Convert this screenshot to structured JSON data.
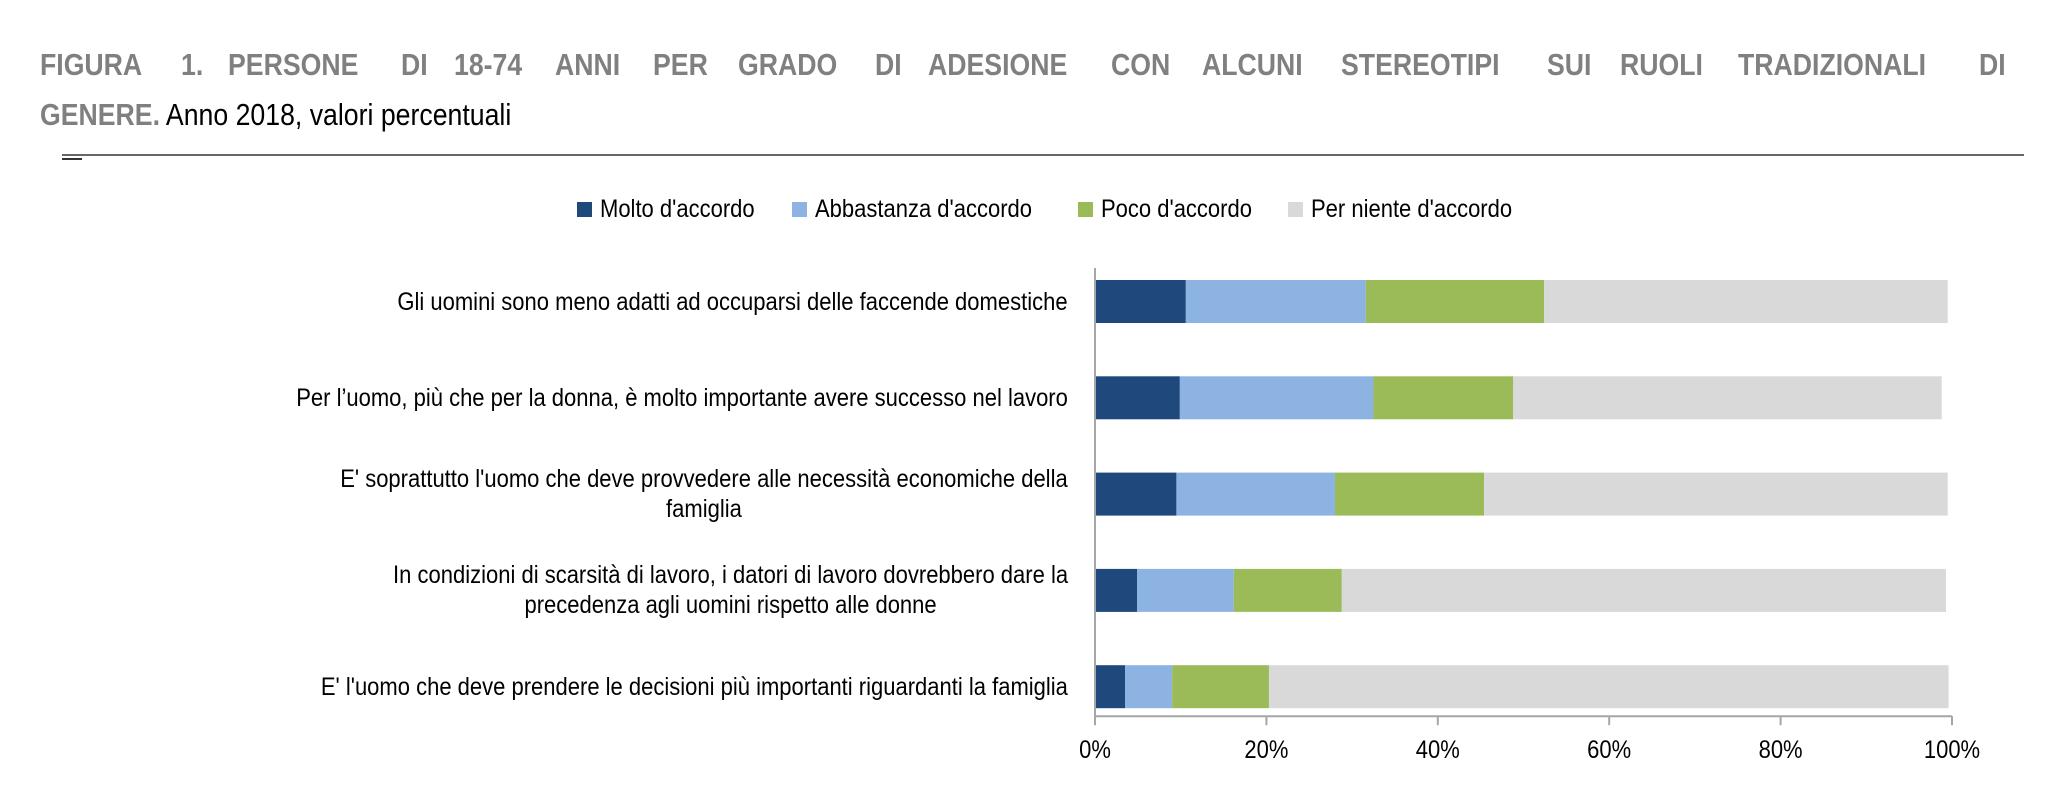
{
  "title": {
    "bold_line1_words": [
      "FIGURA",
      "1.",
      "PERSONE",
      "DI",
      "18-74",
      "ANNI",
      "PER",
      "GRADO",
      "DI",
      "ADESIONE",
      "CON",
      "ALCUNI",
      "STEREOTIPI",
      "SUI",
      "RUOLI",
      "TRADIZIONALI",
      "DI"
    ],
    "bold_line2": "GENERE.",
    "normal_line2": " Anno 2018, valori percentuali"
  },
  "chart_data": {
    "type": "bar",
    "orientation": "horizontal",
    "stacked": true,
    "title": "FIGURA 1. PERSONE DI 18-74 ANNI PER GRADO DI ADESIONE CON ALCUNI STEREOTIPI SUI RUOLI TRADIZIONALI DI GENERE. Anno 2018, valori percentuali",
    "categories": [
      "Gli uomini sono meno adatti ad occuparsi delle faccende domestiche",
      "Per l’uomo, più che per la donna, è molto importante avere successo nel lavoro",
      "E' soprattutto l'uomo che deve provvedere alle necessità economiche della\nfamiglia",
      "In condizioni di scarsità di lavoro, i datori di lavoro dovrebbero dare la\nprecedenza agli uomini rispetto alle donne",
      "E' l'uomo che deve prendere le decisioni più importanti riguardanti la famiglia"
    ],
    "series": [
      {
        "name": "Molto d'accordo",
        "color": "#1f497d",
        "values": [
          10.6,
          9.9,
          9.5,
          4.9,
          3.5
        ]
      },
      {
        "name": "Abbastanza d'accordo",
        "color": "#8db3e2",
        "values": [
          21.0,
          22.6,
          18.5,
          11.3,
          5.5
        ]
      },
      {
        "name": "Poco d'accordo",
        "color": "#9bbb59",
        "values": [
          20.8,
          16.3,
          17.4,
          12.6,
          11.3
        ]
      },
      {
        "name": "Per niente d'accordo",
        "color": "#d9d9d9",
        "values": [
          47.1,
          50.0,
          54.1,
          70.5,
          79.3
        ]
      }
    ],
    "xlim": [
      0,
      100
    ],
    "xticks": [
      "0%",
      "20%",
      "40%",
      "60%",
      "80%",
      "100%"
    ],
    "xlabel": "",
    "ylabel": "",
    "grid": false,
    "legend_position": "top"
  }
}
